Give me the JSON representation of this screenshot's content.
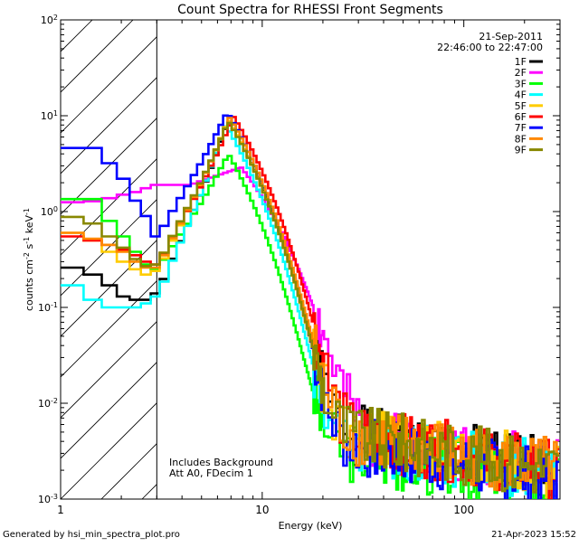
{
  "chart_data": {
    "type": "line",
    "title": "Count Spectra for RHESSI Front Segments",
    "xlabel": "Energy (keV)",
    "ylabel_html": "counts cm<tspan baseline-shift='super' font-size='8'>-2</tspan> s<tspan baseline-shift='super' font-size='8'>-1</tspan> keV<tspan baseline-shift='super' font-size='8'>-1</tspan>",
    "xscale": "log",
    "yscale": "log",
    "xlim": [
      1,
      300
    ],
    "ylim": [
      0.001,
      100
    ],
    "x_ticks": [
      {
        "value": 1,
        "label": "1"
      },
      {
        "value": 10,
        "label": "10"
      },
      {
        "value": 100,
        "label": "100"
      }
    ],
    "y_ticks": [
      {
        "value": 100,
        "mant": "10",
        "exp": "2"
      },
      {
        "value": 10,
        "mant": "10",
        "exp": "1"
      },
      {
        "value": 1,
        "mant": "10",
        "exp": "0"
      },
      {
        "value": 0.1,
        "mant": "10",
        "exp": "-1"
      },
      {
        "value": 0.01,
        "mant": "10",
        "exp": "-2"
      },
      {
        "value": 0.001,
        "mant": "10",
        "exp": "-3"
      }
    ],
    "date": "21-Sep-2011",
    "time_range": "22:46:00 to 22:47:00",
    "excluded_region_keV": [
      1,
      3
    ],
    "annotations": [
      "Includes Background",
      "Att A0, FDecim 1"
    ],
    "footer_left": "Generated by hsi_min_spectra_plot.pro",
    "footer_right": "21-Apr-2023 15:52",
    "legend_position": "top-right",
    "series": [
      {
        "name": "1F",
        "color": "#000000",
        "low": [
          0.26,
          0.22,
          0.17,
          0.13,
          0.12,
          0.12,
          0.14
        ],
        "peak": 9.0,
        "peakE": 6.8,
        "slope": 3.4,
        "floor": 0.0045
      },
      {
        "name": "2F",
        "color": "#ff00ff",
        "low": [
          1.25,
          1.28,
          1.38,
          1.5,
          1.6,
          1.75,
          1.9
        ],
        "peak": 2.9,
        "peakE": 6.5,
        "slope": 2.2,
        "floor": 0.0045,
        "shiftE": 1.35
      },
      {
        "name": "3F",
        "color": "#00ff00",
        "low": [
          1.35,
          1.35,
          0.8,
          0.55,
          0.38,
          0.28,
          0.25
        ],
        "peak": 4.0,
        "peakE": 6.8,
        "slope": 3.7,
        "floor": 0.003
      },
      {
        "name": "4F",
        "color": "#00ffff",
        "low": [
          0.17,
          0.12,
          0.1,
          0.1,
          0.1,
          0.11,
          0.13
        ],
        "peak": 8.0,
        "peakE": 6.6,
        "slope": 3.5,
        "floor": 0.004
      },
      {
        "name": "5F",
        "color": "#ffcc00",
        "low": [
          0.6,
          0.5,
          0.38,
          0.3,
          0.25,
          0.22,
          0.24
        ],
        "peak": 9.2,
        "peakE": 6.8,
        "slope": 3.5,
        "floor": 0.0045
      },
      {
        "name": "6F",
        "color": "#ff0000",
        "low": [
          0.55,
          0.5,
          0.45,
          0.4,
          0.35,
          0.3,
          0.28
        ],
        "peak": 9.8,
        "peakE": 7.2,
        "slope": 3.4,
        "floor": 0.0045
      },
      {
        "name": "7F",
        "color": "#0000ff",
        "low": [
          4.6,
          4.6,
          3.2,
          2.2,
          1.3,
          0.9,
          0.55
        ],
        "peak": 11.0,
        "peakE": 6.7,
        "slope": 3.5,
        "floor": 0.0035
      },
      {
        "name": "8F",
        "color": "#ff8800",
        "low": [
          0.6,
          0.52,
          0.45,
          0.38,
          0.3,
          0.26,
          0.26
        ],
        "peak": 9.5,
        "peakE": 6.9,
        "slope": 3.45,
        "floor": 0.0045
      },
      {
        "name": "9F",
        "color": "#888800",
        "low": [
          0.88,
          0.75,
          0.55,
          0.42,
          0.32,
          0.27,
          0.28
        ],
        "peak": 8.8,
        "peakE": 6.8,
        "slope": 3.45,
        "floor": 0.0045
      }
    ]
  }
}
